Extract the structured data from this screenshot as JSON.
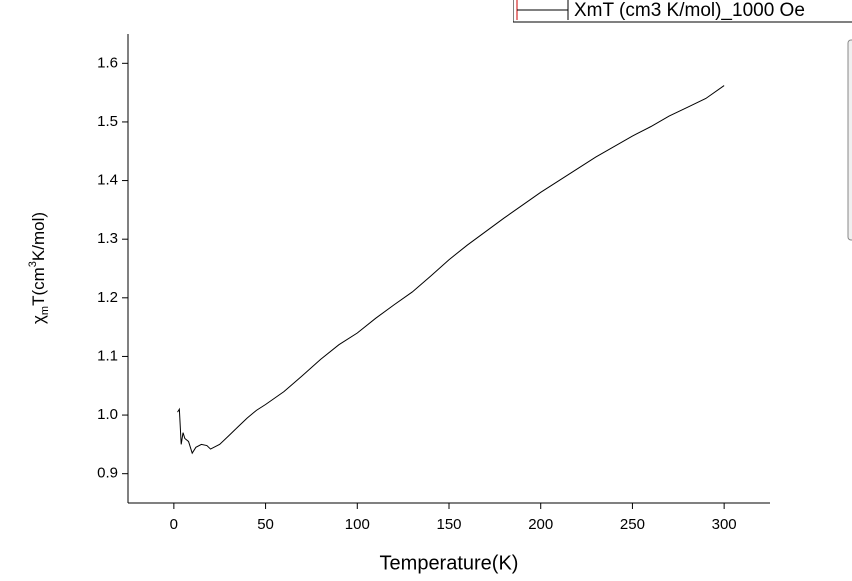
{
  "chart_data": {
    "type": "line",
    "x_label": "Temperature(K)",
    "y_label_parts": [
      "χ",
      "m",
      "T(cm",
      "3",
      "K/mol)"
    ],
    "xlim": [
      -25,
      325
    ],
    "ylim": [
      0.85,
      1.65
    ],
    "xticks": [
      0,
      50,
      100,
      150,
      200,
      250,
      300
    ],
    "yticks": [
      0.9,
      {
        "value": 1.0,
        "label": "1.0"
      },
      1.1,
      1.2,
      1.3,
      1.4,
      1.5,
      1.6
    ],
    "grid": false,
    "legend": "top-right",
    "series": [
      {
        "name": "XmT (cm3 K/mol)_1000 Oe",
        "color": "#000000",
        "x": [
          2,
          3,
          4,
          5,
          6,
          8,
          10,
          12,
          15,
          18,
          20,
          25,
          30,
          35,
          40,
          45,
          50,
          60,
          70,
          80,
          90,
          100,
          110,
          120,
          130,
          140,
          150,
          160,
          170,
          180,
          190,
          200,
          210,
          220,
          230,
          240,
          250,
          260,
          270,
          280,
          290,
          300
        ],
        "values": [
          1.005,
          1.01,
          0.95,
          0.97,
          0.96,
          0.955,
          0.935,
          0.945,
          0.95,
          0.948,
          0.942,
          0.95,
          0.965,
          0.98,
          0.995,
          1.008,
          1.018,
          1.04,
          1.067,
          1.095,
          1.12,
          1.14,
          1.165,
          1.188,
          1.21,
          1.237,
          1.265,
          1.29,
          1.313,
          1.336,
          1.358,
          1.38,
          1.4,
          1.42,
          1.44,
          1.458,
          1.476,
          1.492,
          1.51,
          1.525,
          1.54,
          1.562
        ]
      }
    ]
  }
}
